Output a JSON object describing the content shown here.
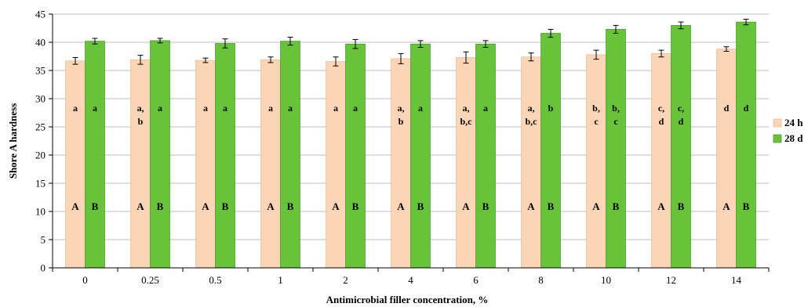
{
  "chart_data": {
    "type": "bar",
    "title": "",
    "xlabel": "Antimicrobial filler concentration, %",
    "ylabel": "Shore A hardness",
    "ylim": [
      0,
      45
    ],
    "yticks": [
      "0",
      "5",
      "10",
      "15",
      "20",
      "25",
      "30",
      "35",
      "40",
      "45"
    ],
    "grid": true,
    "legend_position": "right",
    "categories": [
      "0",
      "0.25",
      "0.5",
      "1",
      "2",
      "4",
      "6",
      "8",
      "10",
      "12",
      "14"
    ],
    "series": [
      {
        "name": "24 h",
        "color": "#fbd5b5",
        "values": [
          36.7,
          36.9,
          36.8,
          36.9,
          36.6,
          37.1,
          37.3,
          37.4,
          37.8,
          38.0,
          38.8
        ],
        "errors": [
          0.6,
          0.8,
          0.4,
          0.5,
          0.8,
          0.9,
          1.0,
          0.7,
          0.8,
          0.6,
          0.4
        ],
        "group_labels": [
          [
            "a"
          ],
          [
            "a,",
            "b"
          ],
          [
            "a"
          ],
          [
            "a"
          ],
          [
            "a"
          ],
          [
            "a,",
            "b"
          ],
          [
            "a,",
            "b,c"
          ],
          [
            "a,",
            "b,c"
          ],
          [
            "b,",
            "c"
          ],
          [
            "c,",
            "d"
          ],
          [
            "d"
          ]
        ],
        "letters": [
          "A",
          "A",
          "A",
          "A",
          "A",
          "A",
          "A",
          "A",
          "A",
          "A",
          "A"
        ]
      },
      {
        "name": "28 d",
        "color": "#66c33a",
        "values": [
          40.2,
          40.3,
          39.8,
          40.2,
          39.7,
          39.7,
          39.7,
          41.6,
          42.3,
          43.0,
          43.6
        ],
        "errors": [
          0.5,
          0.4,
          0.8,
          0.7,
          0.8,
          0.6,
          0.6,
          0.7,
          0.7,
          0.6,
          0.5
        ],
        "group_labels": [
          [
            "a"
          ],
          [
            "a"
          ],
          [
            "a"
          ],
          [
            "a"
          ],
          [
            "a"
          ],
          [
            "a"
          ],
          [
            "a"
          ],
          [
            "b"
          ],
          [
            "b,",
            "c"
          ],
          [
            "c,",
            "d"
          ],
          [
            "d"
          ]
        ],
        "letters": [
          "B",
          "B",
          "B",
          "B",
          "B",
          "B",
          "B",
          "B",
          "B",
          "B",
          "B"
        ]
      }
    ]
  }
}
